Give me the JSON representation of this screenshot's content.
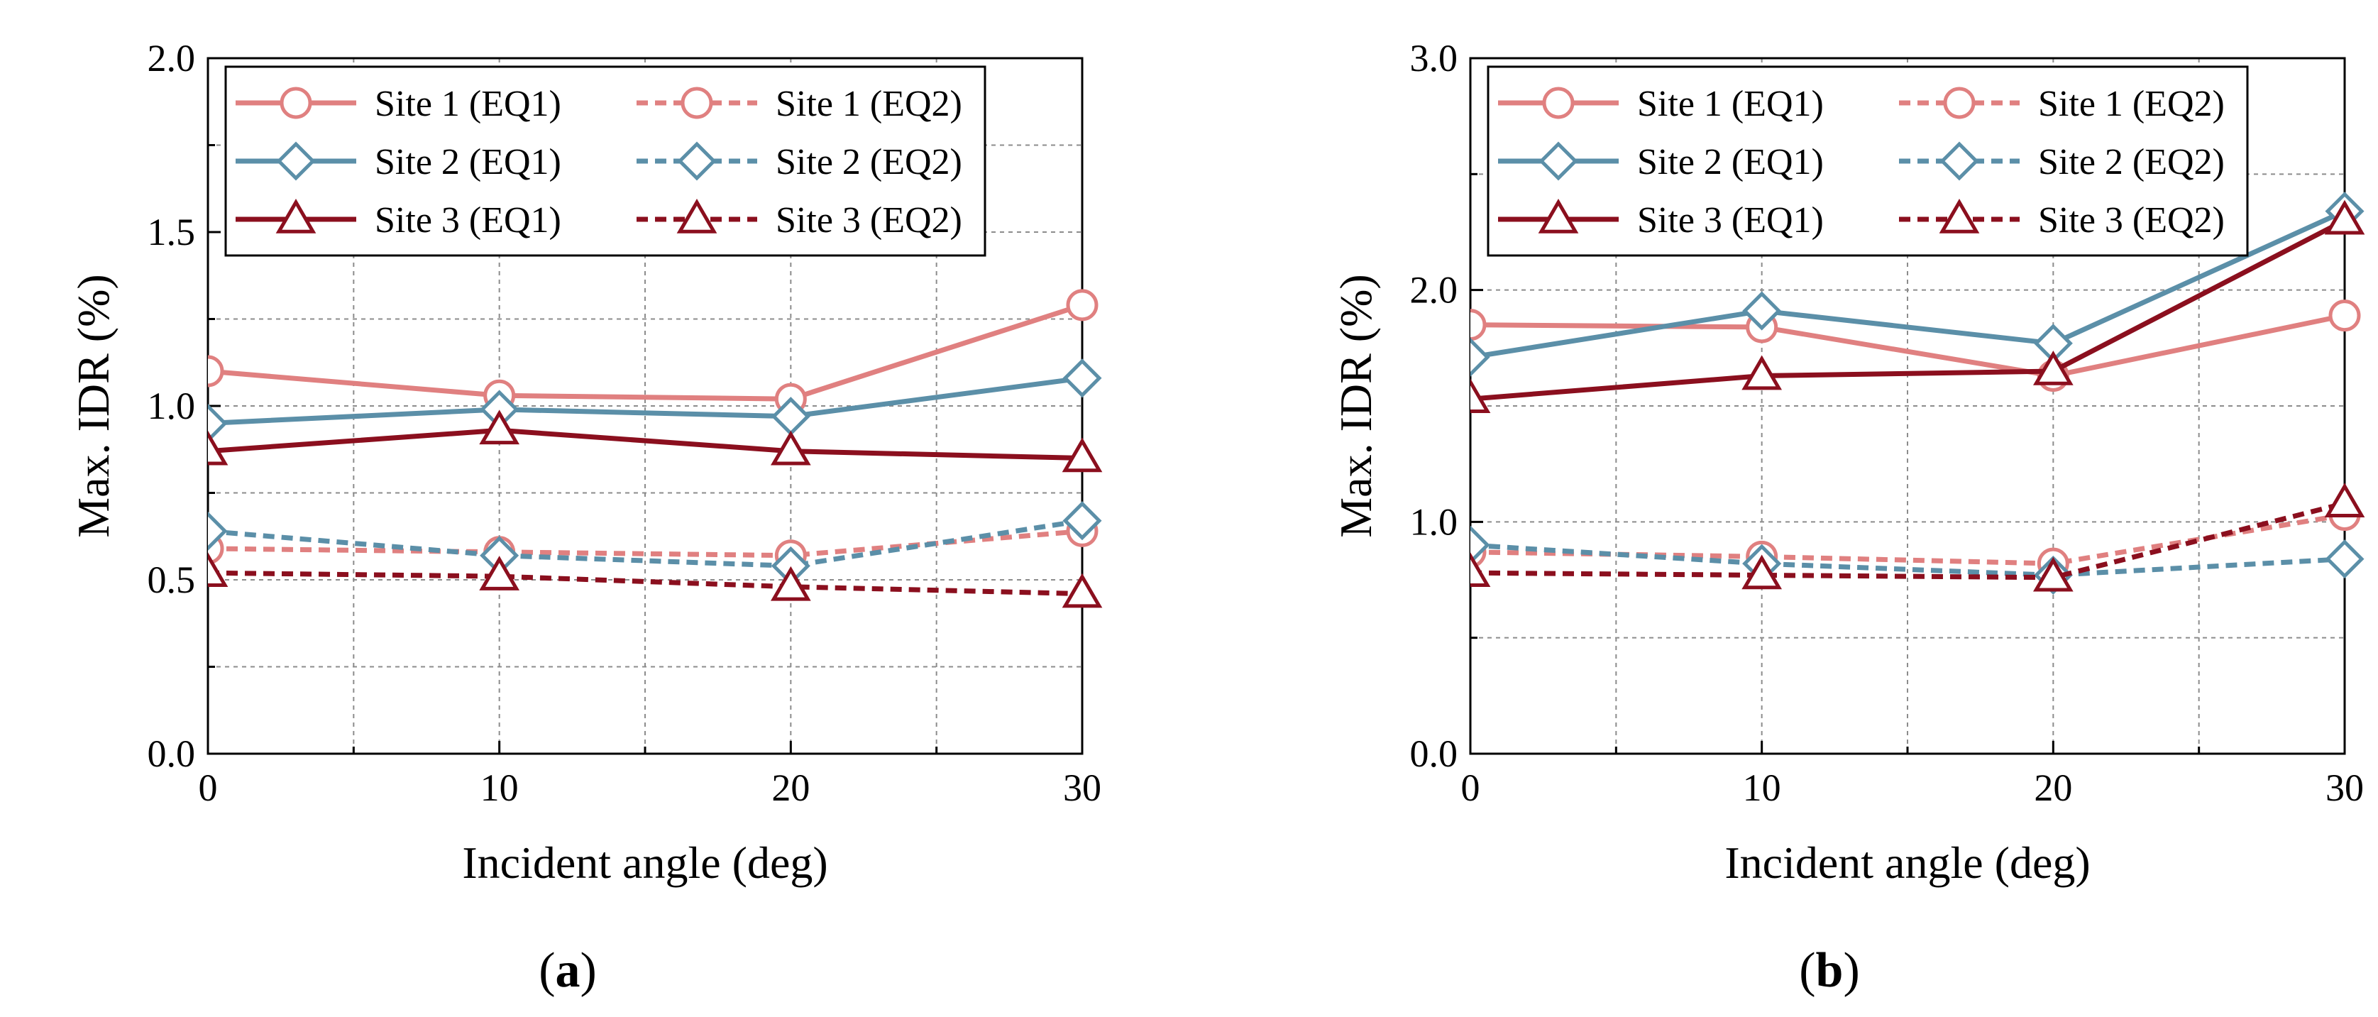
{
  "colors": {
    "site1": "#e08080",
    "site2": "#5b8fa8",
    "site3": "#8b0f1e"
  },
  "chart_data": [
    {
      "type": "line",
      "panel_label": "a",
      "xlabel": "Incident angle (deg)",
      "ylabel": "Max. IDR (%)",
      "xlim": [
        0,
        30
      ],
      "ylim": [
        0.0,
        2.0
      ],
      "x_ticks": [
        "0",
        "10",
        "20",
        "30"
      ],
      "y_ticks": [
        "0.0",
        "0.5",
        "1.0",
        "1.5",
        "2.0"
      ],
      "x": [
        0,
        10,
        20,
        30
      ],
      "grid": true,
      "legend": "top-left",
      "series": [
        {
          "name": "Site 1 (EQ1)",
          "site": "site1",
          "style": "solid",
          "marker": "circle",
          "values": [
            1.1,
            1.03,
            1.02,
            1.29
          ]
        },
        {
          "name": "Site 1 (EQ2)",
          "site": "site1",
          "style": "dashed",
          "marker": "circle",
          "values": [
            0.59,
            0.58,
            0.57,
            0.64
          ]
        },
        {
          "name": "Site 2 (EQ1)",
          "site": "site2",
          "style": "solid",
          "marker": "diamond",
          "values": [
            0.95,
            0.99,
            0.97,
            1.08
          ]
        },
        {
          "name": "Site 2 (EQ2)",
          "site": "site2",
          "style": "dashed",
          "marker": "diamond",
          "values": [
            0.64,
            0.57,
            0.54,
            0.67
          ]
        },
        {
          "name": "Site 3 (EQ1)",
          "site": "site3",
          "style": "solid",
          "marker": "triangle",
          "values": [
            0.87,
            0.93,
            0.87,
            0.85
          ]
        },
        {
          "name": "Site 3 (EQ2)",
          "site": "site3",
          "style": "dashed",
          "marker": "triangle",
          "values": [
            0.52,
            0.51,
            0.48,
            0.46
          ]
        }
      ]
    },
    {
      "type": "line",
      "panel_label": "b",
      "xlabel": "Incident angle (deg)",
      "ylabel": "Max. IDR (%)",
      "xlim": [
        0,
        30
      ],
      "ylim": [
        0.0,
        3.0
      ],
      "x_ticks": [
        "0",
        "10",
        "20",
        "30"
      ],
      "y_ticks": [
        "0.0",
        "1.0",
        "2.0",
        "3.0"
      ],
      "x": [
        0,
        10,
        20,
        30
      ],
      "grid": true,
      "legend": "top-left",
      "series": [
        {
          "name": "Site 1 (EQ1)",
          "site": "site1",
          "style": "solid",
          "marker": "circle",
          "values": [
            1.85,
            1.84,
            1.63,
            1.89
          ]
        },
        {
          "name": "Site 1 (EQ2)",
          "site": "site1",
          "style": "dashed",
          "marker": "circle",
          "values": [
            0.87,
            0.85,
            0.82,
            1.03
          ]
        },
        {
          "name": "Site 2 (EQ1)",
          "site": "site2",
          "style": "solid",
          "marker": "diamond",
          "values": [
            1.71,
            1.91,
            1.77,
            2.34
          ]
        },
        {
          "name": "Site 2 (EQ2)",
          "site": "site2",
          "style": "dashed",
          "marker": "diamond",
          "values": [
            0.9,
            0.82,
            0.77,
            0.84
          ]
        },
        {
          "name": "Site 3 (EQ1)",
          "site": "site3",
          "style": "solid",
          "marker": "triangle",
          "values": [
            1.53,
            1.63,
            1.65,
            2.3
          ]
        },
        {
          "name": "Site 3 (EQ2)",
          "site": "site3",
          "style": "dashed",
          "marker": "triangle",
          "values": [
            0.78,
            0.77,
            0.76,
            1.08
          ]
        }
      ]
    }
  ]
}
